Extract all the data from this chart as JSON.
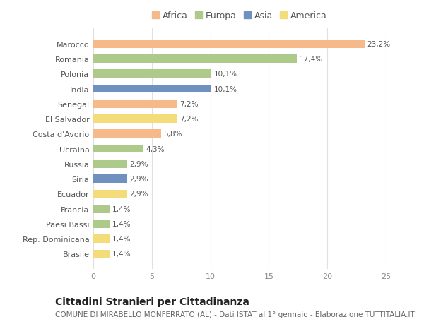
{
  "categories": [
    "Marocco",
    "Romania",
    "Polonia",
    "India",
    "Senegal",
    "El Salvador",
    "Costa d'Avorio",
    "Ucraina",
    "Russia",
    "Siria",
    "Ecuador",
    "Francia",
    "Paesi Bassi",
    "Rep. Dominicana",
    "Brasile"
  ],
  "values": [
    23.2,
    17.4,
    10.1,
    10.1,
    7.2,
    7.2,
    5.8,
    4.3,
    2.9,
    2.9,
    2.9,
    1.4,
    1.4,
    1.4,
    1.4
  ],
  "labels": [
    "23,2%",
    "17,4%",
    "10,1%",
    "10,1%",
    "7,2%",
    "7,2%",
    "5,8%",
    "4,3%",
    "2,9%",
    "2,9%",
    "2,9%",
    "1,4%",
    "1,4%",
    "1,4%",
    "1,4%"
  ],
  "colors": [
    "#F5B98A",
    "#AECA8A",
    "#AECA8A",
    "#7090C0",
    "#F5B98A",
    "#F5DC7A",
    "#F5B98A",
    "#AECA8A",
    "#AECA8A",
    "#7090C0",
    "#F5DC7A",
    "#AECA8A",
    "#AECA8A",
    "#F5DC7A",
    "#F5DC7A"
  ],
  "legend_labels": [
    "Africa",
    "Europa",
    "Asia",
    "America"
  ],
  "legend_colors": [
    "#F5B98A",
    "#AECA8A",
    "#7090C0",
    "#F5DC7A"
  ],
  "title": "Cittadini Stranieri per Cittadinanza",
  "subtitle": "COMUNE DI MIRABELLO MONFERRATO (AL) - Dati ISTAT al 1° gennaio - Elaborazione TUTTITALIA.IT",
  "xlim": [
    0,
    25
  ],
  "xticks": [
    0,
    5,
    10,
    15,
    20,
    25
  ],
  "background_color": "#ffffff",
  "grid_color": "#e0e0e0",
  "bar_height": 0.55,
  "title_fontsize": 10,
  "subtitle_fontsize": 7.5,
  "label_fontsize": 7.5,
  "tick_fontsize": 8,
  "legend_fontsize": 9,
  "ytick_fontsize": 8
}
